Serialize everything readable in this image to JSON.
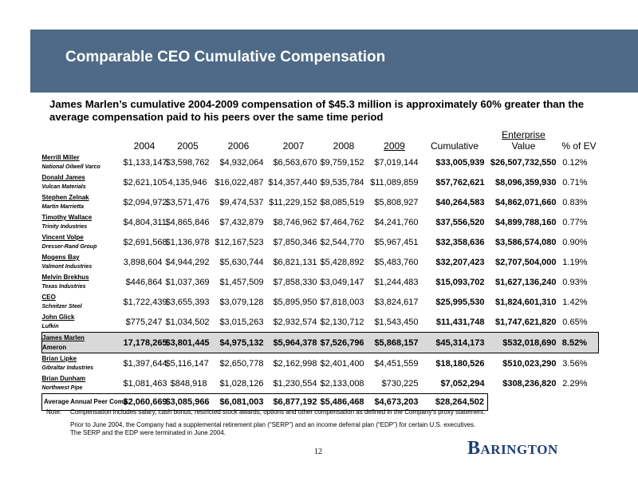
{
  "header": {
    "title": "Comparable CEO Cumulative Compensation"
  },
  "subtitle": "James Marlen’s cumulative 2004-2009 compensation of $45.3 million is approximately 60% greater than the average compensation paid to his peers over the same time period",
  "table": {
    "columns": {
      "y2004": "2004",
      "y2005": "2005",
      "y2006": "2006",
      "y2007": "2007",
      "y2008": "2008",
      "y2009": "2009",
      "cumulative": "Cumulative",
      "ev_line1": "Enterprise",
      "ev_line2": "Value",
      "pct": "% of EV"
    },
    "rows": [
      {
        "name": "Merrill Miller",
        "company": "National Oilwell Varco",
        "v2004": "$1,133,147",
        "v2005": "$3,598,762",
        "v2006": "$4,932,064",
        "v2007": "$6,563,670",
        "v2008": "$9,759,152",
        "v2009": "$7,019,144",
        "cumulative": "$33,005,939",
        "ev": "$26,507,732,550",
        "pct": "0.12%"
      },
      {
        "name": "Donald James",
        "company": "Vulcan Materials",
        "v2004": "$2,621,105",
        "v2005": "4,135,946",
        "v2006": "$16,022,487",
        "v2007": "$14,357,440",
        "v2008": "$9,535,784",
        "v2009": "$11,089,859",
        "cumulative": "$57,762,621",
        "ev": "$8,096,359,930",
        "pct": "0.71%"
      },
      {
        "name": "Stephen Zelnak",
        "company": "Martin Marrietta",
        "v2004": "$2,094,972",
        "v2005": "$3,571,476",
        "v2006": "$9,474,537",
        "v2007": "$11,229,152",
        "v2008": "$8,085,519",
        "v2009": "$5,808,927",
        "cumulative": "$40,264,583",
        "ev": "$4,862,071,660",
        "pct": "0.83%"
      },
      {
        "name": "Timothy Wallace",
        "company": "Trinity Industries",
        "v2004": "$4,804,311",
        "v2005": "$4,865,846",
        "v2006": "$7,432,879",
        "v2007": "$8,746,962",
        "v2008": "$7,464,762",
        "v2009": "$4,241,760",
        "cumulative": "$37,556,520",
        "ev": "$4,899,788,160",
        "pct": "0.77%"
      },
      {
        "name": "Vincent Volpe",
        "company": "Dresser-Rand Group",
        "v2004": "$2,691,568",
        "v2005": "$1,136,978",
        "v2006": "$12,167,523",
        "v2007": "$7,850,346",
        "v2008": "$2,544,770",
        "v2009": "$5,967,451",
        "cumulative": "$32,358,636",
        "ev": "$3,586,574,080",
        "pct": "0.90%"
      },
      {
        "name": "Mogens Bay",
        "company": "Valmont Industries",
        "v2004": "3,898,604",
        "v2005": "$4,944,292",
        "v2006": "$5,630,744",
        "v2007": "$6,821,131",
        "v2008": "$5,428,892",
        "v2009": "$5,483,760",
        "cumulative": "$32,207,423",
        "ev": "$2,707,504,000",
        "pct": "1.19%"
      },
      {
        "name": "Melvin Brekhus",
        "company": "Texas Industries",
        "v2004": "$446,864",
        "v2005": "$1,037,369",
        "v2006": "$1,457,509",
        "v2007": "$7,858,330",
        "v2008": "$3,049,147",
        "v2009": "$1,244,483",
        "cumulative": "$15,093,702",
        "ev": "$1,627,136,240",
        "pct": "0.93%"
      },
      {
        "name": "CEO",
        "company": "Schnitzer Steel",
        "v2004": "$1,722,439",
        "v2005": "$3,655,393",
        "v2006": "$3,079,128",
        "v2007": "$5,895,950",
        "v2008": "$7,818,003",
        "v2009": "$3,824,617",
        "cumulative": "$25,995,530",
        "ev": "$1,824,601,310",
        "pct": "1.42%"
      },
      {
        "name": "John Glick",
        "company": "Lufkin",
        "v2004": "$775,247",
        "v2005": "$1,034,502",
        "v2006": "$3,015,263",
        "v2007": "$2,932,574",
        "v2008": "$2,130,712",
        "v2009": "$1,543,450",
        "cumulative": "$11,431,748",
        "ev": "$1,747,621,820",
        "pct": "0.65%"
      },
      {
        "name": "James Marlen",
        "company": "Ameron",
        "v2004": "17,178,265",
        "v2005": "$3,801,445",
        "v2006": "$4,975,132",
        "v2007": "$5,964,378",
        "v2008": "$7,526,796",
        "v2009": "$5,868,157",
        "cumulative": "$45,314,173",
        "ev": "$532,018,690",
        "pct": "8.52%"
      },
      {
        "name": "Brian Lipke",
        "company": "Gibraltar Industries",
        "v2004": "$1,397,644",
        "v2005": "$5,116,147",
        "v2006": "$2,650,778",
        "v2007": "$2,162,998",
        "v2008": "$2,401,400",
        "v2009": "$4,451,559",
        "cumulative": "$18,180,526",
        "ev": "$510,023,290",
        "pct": "3.56%"
      },
      {
        "name": "Brian Dunham",
        "company": "Northwest Pipe",
        "v2004": "$1,081,463",
        "v2005": "$848,918",
        "v2006": "$1,028,126",
        "v2007": "$1,230,554",
        "v2008": "$2,133,008",
        "v2009": "$730,225",
        "cumulative": "$7,052,294",
        "ev": "$308,236,820",
        "pct": "2.29%"
      }
    ],
    "average": {
      "label": "Average Annual Peer Comp",
      "v2004": "$2,060,669",
      "v2005": "$3,085,966",
      "v2006": "$6,081,003",
      "v2007": "$6,877,192",
      "v2008": "$5,486,468",
      "v2009": "$4,673,203",
      "cumulative": "$28,264,502"
    }
  },
  "notes": {
    "label": "Note:",
    "line1": "Compensation includes salary, cash bonus, restricted stock awards, options and other compensation as defined in the Company’s proxy statement.",
    "line2": "Prior to June 2004, the Company had a supplemental retirement plan (“SERP”) and an income deferral plan (“EDP”) for certain U.S. executives.",
    "line3": "The SERP and the EDP were terminated in June 2004."
  },
  "footer": {
    "page_number": "12",
    "logo_initial": "B",
    "logo_rest": "ARINGTON"
  },
  "colors": {
    "banner": "#4f6a87",
    "highlight_row": "#d9d9d9",
    "logo": "#1b3f73"
  }
}
